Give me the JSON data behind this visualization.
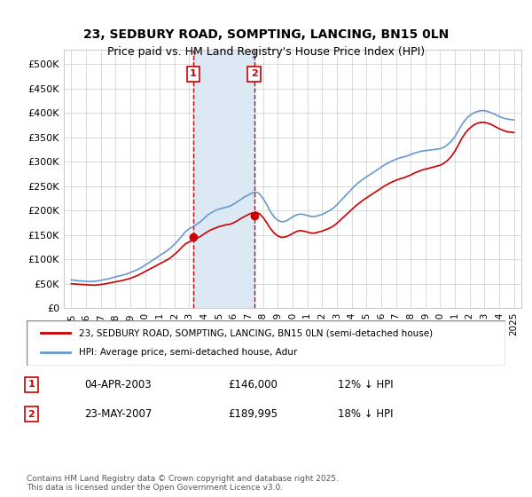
{
  "title": "23, SEDBURY ROAD, SOMPTING, LANCING, BN15 0LN",
  "subtitle": "Price paid vs. HM Land Registry's House Price Index (HPI)",
  "legend_line1": "23, SEDBURY ROAD, SOMPTING, LANCING, BN15 0LN (semi-detached house)",
  "legend_line2": "HPI: Average price, semi-detached house, Adur",
  "footer": "Contains HM Land Registry data © Crown copyright and database right 2025.\nThis data is licensed under the Open Government Licence v3.0.",
  "sale1_date": "04-APR-2003",
  "sale1_price": 146000,
  "sale1_label": "1",
  "sale1_x": 2003.26,
  "sale1_pct": "12% ↓ HPI",
  "sale2_date": "23-MAY-2007",
  "sale2_price": 189995,
  "sale2_label": "2",
  "sale2_x": 2007.39,
  "sale2_pct": "18% ↓ HPI",
  "red_color": "#cc0000",
  "blue_color": "#6699cc",
  "shade_color": "#dce9f5",
  "grid_color": "#cccccc",
  "ylim_min": 0,
  "ylim_max": 530000,
  "xlim_min": 1994.5,
  "xlim_max": 2025.5,
  "yticks": [
    0,
    50000,
    100000,
    150000,
    200000,
    250000,
    300000,
    350000,
    400000,
    450000,
    500000
  ],
  "ytick_labels": [
    "£0",
    "£50K",
    "£100K",
    "£150K",
    "£200K",
    "£250K",
    "£300K",
    "£350K",
    "£400K",
    "£450K",
    "£500K"
  ],
  "xticks": [
    1995,
    1996,
    1997,
    1998,
    1999,
    2000,
    2001,
    2002,
    2003,
    2004,
    2005,
    2006,
    2007,
    2008,
    2009,
    2010,
    2011,
    2012,
    2013,
    2014,
    2015,
    2016,
    2017,
    2018,
    2019,
    2020,
    2021,
    2022,
    2023,
    2024,
    2025
  ],
  "hpi_years": [
    1995,
    1995.25,
    1995.5,
    1995.75,
    1996,
    1996.25,
    1996.5,
    1996.75,
    1997,
    1997.25,
    1997.5,
    1997.75,
    1998,
    1998.25,
    1998.5,
    1998.75,
    1999,
    1999.25,
    1999.5,
    1999.75,
    2000,
    2000.25,
    2000.5,
    2000.75,
    2001,
    2001.25,
    2001.5,
    2001.75,
    2002,
    2002.25,
    2002.5,
    2002.75,
    2003,
    2003.25,
    2003.5,
    2003.75,
    2004,
    2004.25,
    2004.5,
    2004.75,
    2005,
    2005.25,
    2005.5,
    2005.75,
    2006,
    2006.25,
    2006.5,
    2006.75,
    2007,
    2007.25,
    2007.5,
    2007.75,
    2008,
    2008.25,
    2008.5,
    2008.75,
    2009,
    2009.25,
    2009.5,
    2009.75,
    2010,
    2010.25,
    2010.5,
    2010.75,
    2011,
    2011.25,
    2011.5,
    2011.75,
    2012,
    2012.25,
    2012.5,
    2012.75,
    2013,
    2013.25,
    2013.5,
    2013.75,
    2014,
    2014.25,
    2014.5,
    2014.75,
    2015,
    2015.25,
    2015.5,
    2015.75,
    2016,
    2016.25,
    2016.5,
    2016.75,
    2017,
    2017.25,
    2017.5,
    2017.75,
    2018,
    2018.25,
    2018.5,
    2018.75,
    2019,
    2019.25,
    2019.5,
    2019.75,
    2020,
    2020.25,
    2020.5,
    2020.75,
    2021,
    2021.25,
    2021.5,
    2021.75,
    2022,
    2022.25,
    2022.5,
    2022.75,
    2023,
    2023.25,
    2023.5,
    2023.75,
    2024,
    2024.25,
    2024.5,
    2024.75,
    2025
  ],
  "hpi_values": [
    58000,
    57000,
    56000,
    55500,
    55000,
    54500,
    55000,
    55500,
    57000,
    58500,
    60000,
    62000,
    64000,
    66000,
    68000,
    70000,
    73000,
    76000,
    79000,
    83000,
    88000,
    93000,
    98000,
    103000,
    108000,
    113000,
    118000,
    124000,
    131000,
    139000,
    148000,
    157000,
    163000,
    167000,
    172000,
    177000,
    184000,
    191000,
    196000,
    200000,
    203000,
    205000,
    207000,
    209000,
    213000,
    218000,
    223000,
    228000,
    232000,
    236000,
    238000,
    235000,
    225000,
    212000,
    198000,
    187000,
    180000,
    177000,
    178000,
    182000,
    187000,
    191000,
    193000,
    192000,
    190000,
    188000,
    188000,
    190000,
    192000,
    196000,
    200000,
    205000,
    212000,
    220000,
    228000,
    236000,
    244000,
    252000,
    258000,
    264000,
    269000,
    274000,
    279000,
    284000,
    289000,
    294000,
    298000,
    302000,
    305000,
    308000,
    310000,
    312000,
    315000,
    318000,
    320000,
    322000,
    323000,
    324000,
    325000,
    326000,
    327000,
    330000,
    335000,
    342000,
    352000,
    365000,
    378000,
    388000,
    395000,
    400000,
    403000,
    405000,
    405000,
    403000,
    400000,
    397000,
    393000,
    390000,
    388000,
    387000,
    386000
  ],
  "red_years": [
    1995,
    1995.25,
    1995.5,
    1995.75,
    1996,
    1996.25,
    1996.5,
    1996.75,
    1997,
    1997.25,
    1997.5,
    1997.75,
    1998,
    1998.25,
    1998.5,
    1998.75,
    1999,
    1999.25,
    1999.5,
    1999.75,
    2000,
    2000.25,
    2000.5,
    2000.75,
    2001,
    2001.25,
    2001.5,
    2001.75,
    2002,
    2002.25,
    2002.5,
    2002.75,
    2003,
    2003.25,
    2003.5,
    2003.75,
    2004,
    2004.25,
    2004.5,
    2004.75,
    2005,
    2005.25,
    2005.5,
    2005.75,
    2006,
    2006.25,
    2006.5,
    2006.75,
    2007,
    2007.25,
    2007.5,
    2007.75,
    2008,
    2008.25,
    2008.5,
    2008.75,
    2009,
    2009.25,
    2009.5,
    2009.75,
    2010,
    2010.25,
    2010.5,
    2010.75,
    2011,
    2011.25,
    2011.5,
    2011.75,
    2012,
    2012.25,
    2012.5,
    2012.75,
    2013,
    2013.25,
    2013.5,
    2013.75,
    2014,
    2014.25,
    2014.5,
    2014.75,
    2015,
    2015.25,
    2015.5,
    2015.75,
    2016,
    2016.25,
    2016.5,
    2016.75,
    2017,
    2017.25,
    2017.5,
    2017.75,
    2018,
    2018.25,
    2018.5,
    2018.75,
    2019,
    2019.25,
    2019.5,
    2019.75,
    2020,
    2020.25,
    2020.5,
    2020.75,
    2021,
    2021.25,
    2021.5,
    2021.75,
    2022,
    2022.25,
    2022.5,
    2022.75,
    2023,
    2023.25,
    2023.5,
    2023.75,
    2024,
    2024.25,
    2024.5,
    2024.75,
    2025
  ],
  "red_values": [
    50000,
    49500,
    49000,
    48500,
    48000,
    47500,
    47000,
    47500,
    48500,
    49500,
    51000,
    52500,
    54000,
    55500,
    57000,
    59000,
    61000,
    64000,
    67000,
    71000,
    75000,
    79000,
    83000,
    87000,
    91000,
    95000,
    99000,
    104000,
    110000,
    117000,
    125000,
    132000,
    136000,
    139000,
    143000,
    147000,
    152000,
    157000,
    161000,
    164000,
    167000,
    169000,
    171000,
    172000,
    175000,
    179000,
    184000,
    188000,
    192000,
    195000,
    197000,
    194000,
    186000,
    175000,
    163000,
    154000,
    148000,
    145000,
    146000,
    149000,
    153000,
    157000,
    159000,
    158000,
    156000,
    154000,
    154000,
    156000,
    158000,
    161000,
    164000,
    168000,
    174000,
    181000,
    188000,
    195000,
    202000,
    209000,
    215000,
    221000,
    226000,
    231000,
    236000,
    241000,
    246000,
    251000,
    255000,
    259000,
    262000,
    265000,
    267000,
    270000,
    273000,
    277000,
    280000,
    283000,
    285000,
    287000,
    289000,
    291000,
    293000,
    297000,
    303000,
    311000,
    322000,
    336000,
    350000,
    361000,
    369000,
    375000,
    379000,
    381000,
    381000,
    379000,
    376000,
    372000,
    368000,
    365000,
    362000,
    361000,
    360000
  ]
}
